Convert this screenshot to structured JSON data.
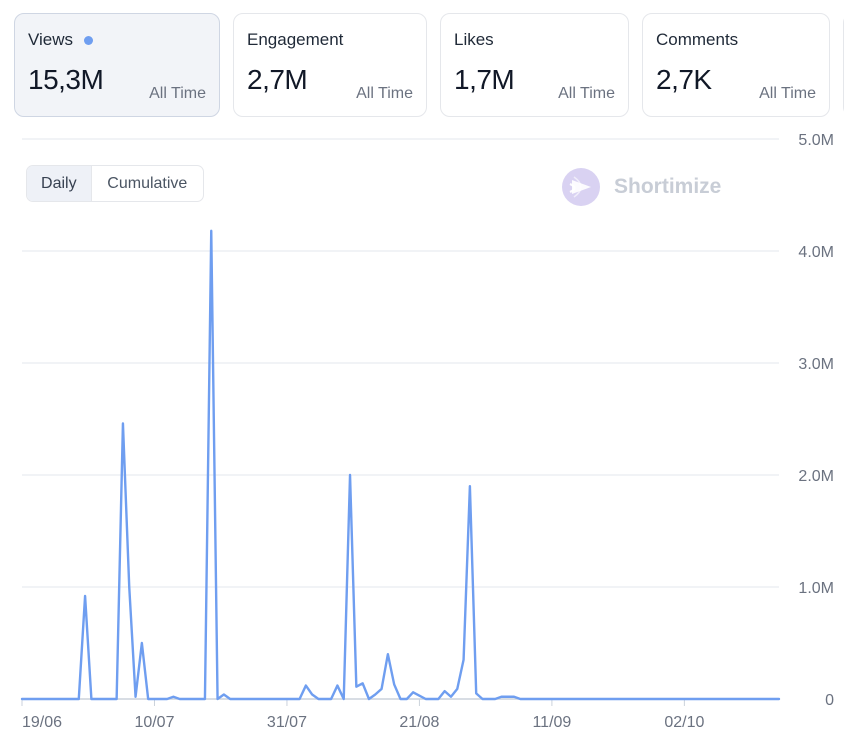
{
  "metrics": [
    {
      "title": "Views",
      "value": "15,3M",
      "period": "All Time",
      "active": true
    },
    {
      "title": "Engagement",
      "value": "2,7M",
      "period": "All Time",
      "active": false
    },
    {
      "title": "Likes",
      "value": "1,7M",
      "period": "All Time",
      "active": false
    },
    {
      "title": "Comments",
      "value": "2,7K",
      "period": "All Time",
      "active": false
    }
  ],
  "toggle": {
    "daily_label": "Daily",
    "cumulative_label": "Cumulative",
    "selected": "Daily"
  },
  "brand": {
    "name": "Shortimize"
  },
  "colors": {
    "line": "#6f9ef0",
    "accent_dot": "#6f9ef0",
    "brand_logo": "#d9d2f2"
  },
  "chart_data": {
    "type": "line",
    "title": "",
    "xlabel": "",
    "ylabel": "",
    "x_start": "19/06",
    "x_ticks": [
      "19/06",
      "10/07",
      "31/07",
      "21/08",
      "11/09",
      "02/10"
    ],
    "y_ticks": [
      "0",
      "1.0M",
      "2.0M",
      "3.0M",
      "4.0M",
      "5.0M"
    ],
    "ylim": [
      0,
      5000000
    ],
    "y_axis_position": "right",
    "grid": true,
    "series": [
      {
        "values": [
          0,
          0,
          0,
          0,
          0,
          0,
          0,
          0,
          0,
          0,
          920000,
          0,
          0,
          0,
          0,
          0,
          2460000,
          1000000,
          20000,
          500000,
          0,
          0,
          0,
          0,
          20000,
          0,
          0,
          0,
          0,
          0,
          4180000,
          0,
          40000,
          0,
          0,
          0,
          0,
          0,
          0,
          0,
          0,
          0,
          0,
          0,
          0,
          120000,
          40000,
          0,
          0,
          0,
          120000,
          0,
          2000000,
          110000,
          140000,
          0,
          40000,
          90000,
          400000,
          130000,
          0,
          0,
          60000,
          30000,
          0,
          0,
          0,
          70000,
          20000,
          90000,
          350000,
          1900000,
          50000,
          0,
          0,
          0,
          20000,
          20000,
          20000,
          0,
          0,
          0,
          0,
          0,
          0,
          0,
          0,
          0,
          0,
          0,
          0,
          0,
          0,
          0,
          0,
          0,
          0,
          0,
          0,
          0,
          0,
          0,
          0,
          0,
          0,
          0,
          0,
          0,
          0,
          0,
          0,
          0,
          0,
          0,
          0,
          0,
          0,
          0,
          0,
          0,
          0
        ]
      }
    ]
  }
}
